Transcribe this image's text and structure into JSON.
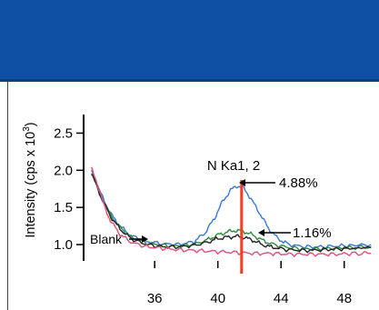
{
  "banner": {
    "color": "#0e4fa3"
  },
  "chart_data": {
    "type": "line",
    "xlabel": "",
    "ylabel": "Intensity (cps x 10³)",
    "x_ticks": [
      "36",
      "40",
      "44",
      "48"
    ],
    "y_ticks": [
      "1.0",
      "1.5",
      "2.0",
      "2.5"
    ],
    "xlim": [
      31.5,
      49.8
    ],
    "ylim": [
      0.78,
      2.75
    ],
    "peak_x": 41.5,
    "annotations": {
      "peak": "N Ka1, 2",
      "high": "4.88%",
      "low": "1.16%",
      "blank": "Blank"
    },
    "series": [
      {
        "color": "#3a78d6",
        "points": [
          [
            32,
            2.0
          ],
          [
            32.6,
            1.68
          ],
          [
            33.2,
            1.42
          ],
          [
            33.8,
            1.25
          ],
          [
            34.5,
            1.12
          ],
          [
            35.5,
            1.04
          ],
          [
            36.5,
            1.01
          ],
          [
            37.5,
            1.0
          ],
          [
            38.5,
            1.04
          ],
          [
            39.2,
            1.16
          ],
          [
            39.8,
            1.36
          ],
          [
            40.3,
            1.58
          ],
          [
            40.8,
            1.73
          ],
          [
            41.2,
            1.79
          ],
          [
            41.6,
            1.77
          ],
          [
            42.0,
            1.65
          ],
          [
            42.6,
            1.44
          ],
          [
            43.2,
            1.22
          ],
          [
            43.8,
            1.08
          ],
          [
            44.5,
            1.0
          ],
          [
            45.5,
            0.97
          ],
          [
            46.5,
            0.97
          ],
          [
            47.5,
            0.98
          ],
          [
            48.5,
            0.99
          ],
          [
            49.7,
            1.0
          ]
        ]
      },
      {
        "color": "#2e8b3e",
        "points": [
          [
            32,
            1.98
          ],
          [
            32.6,
            1.66
          ],
          [
            33.2,
            1.4
          ],
          [
            33.8,
            1.23
          ],
          [
            34.5,
            1.1
          ],
          [
            35.5,
            1.02
          ],
          [
            36.5,
            0.99
          ],
          [
            37.5,
            0.98
          ],
          [
            38.5,
            1.0
          ],
          [
            39.3,
            1.06
          ],
          [
            40.0,
            1.13
          ],
          [
            40.6,
            1.17
          ],
          [
            41.1,
            1.19
          ],
          [
            41.6,
            1.18
          ],
          [
            42.2,
            1.13
          ],
          [
            42.8,
            1.06
          ],
          [
            43.5,
            1.0
          ],
          [
            44.5,
            0.96
          ],
          [
            45.5,
            0.94
          ],
          [
            46.5,
            0.94
          ],
          [
            47.5,
            0.95
          ],
          [
            48.5,
            0.96
          ],
          [
            49.7,
            0.97
          ]
        ]
      },
      {
        "color": "#222222",
        "points": [
          [
            32,
            1.96
          ],
          [
            32.6,
            1.64
          ],
          [
            33.2,
            1.38
          ],
          [
            33.8,
            1.21
          ],
          [
            34.5,
            1.08
          ],
          [
            35.5,
            1.0
          ],
          [
            36.5,
            0.97
          ],
          [
            37.5,
            0.97
          ],
          [
            38.5,
            0.99
          ],
          [
            39.3,
            1.03
          ],
          [
            40.0,
            1.08
          ],
          [
            40.6,
            1.1
          ],
          [
            41.1,
            1.11
          ],
          [
            41.6,
            1.1
          ],
          [
            42.2,
            1.06
          ],
          [
            42.8,
            1.0
          ],
          [
            43.5,
            0.96
          ],
          [
            44.5,
            0.93
          ],
          [
            45.5,
            0.92
          ],
          [
            46.5,
            0.93
          ],
          [
            47.5,
            0.94
          ],
          [
            48.5,
            0.95
          ],
          [
            49.7,
            0.96
          ]
        ]
      },
      {
        "color": "#e0507a",
        "points": [
          [
            32,
            2.02
          ],
          [
            32.4,
            1.8
          ],
          [
            32.8,
            1.52
          ],
          [
            33.2,
            1.32
          ],
          [
            33.8,
            1.14
          ],
          [
            34.5,
            1.03
          ],
          [
            35.5,
            0.97
          ],
          [
            36.5,
            0.95
          ],
          [
            37.5,
            0.93
          ],
          [
            38.5,
            0.92
          ],
          [
            39.5,
            0.91
          ],
          [
            40.5,
            0.9
          ],
          [
            41.5,
            0.89
          ],
          [
            42.5,
            0.88
          ],
          [
            43.5,
            0.88
          ],
          [
            44.5,
            0.87
          ],
          [
            45.5,
            0.87
          ],
          [
            46.5,
            0.87
          ],
          [
            47.5,
            0.87
          ],
          [
            48.5,
            0.88
          ],
          [
            49.7,
            0.88
          ]
        ]
      }
    ]
  }
}
